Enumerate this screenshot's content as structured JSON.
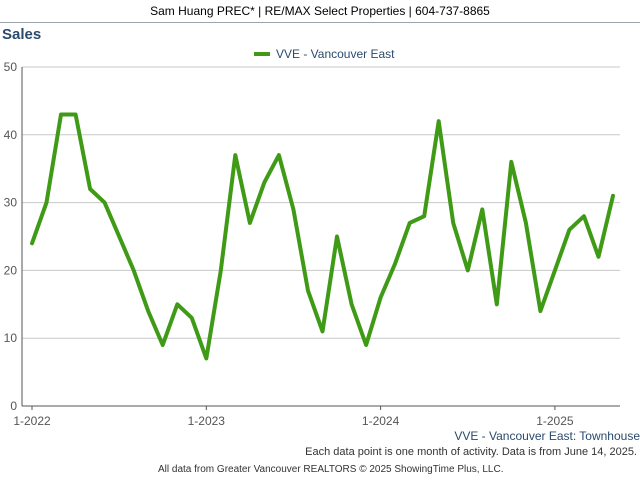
{
  "header": {
    "banner": "Sam Huang PREC* | RE/MAX Select Properties | 604-737-8865"
  },
  "chart_data": {
    "type": "line",
    "title": "Sales",
    "subtitle": "VVE - Vancouver East: Townhouse",
    "note": "Each data point is one month of activity. Data is from June 14, 2025.",
    "source": "All data from Greater Vancouver REALTORS © 2025 ShowingTime Plus, LLC.",
    "legend_position": "top-center",
    "grid": true,
    "ylim": [
      0,
      50
    ],
    "yticks": [
      0,
      10,
      20,
      30,
      40,
      50
    ],
    "x_tick_labels": [
      "1-2022",
      "1-2023",
      "1-2024",
      "1-2025"
    ],
    "x_start": "2022-01",
    "series": [
      {
        "name": "VVE - Vancouver East",
        "color": "#3f9a16",
        "values": [
          24,
          30,
          43,
          43,
          32,
          30,
          25,
          20,
          14,
          9,
          15,
          13,
          7,
          20,
          37,
          27,
          33,
          37,
          29,
          17,
          11,
          25,
          15,
          9,
          16,
          21,
          27,
          28,
          42,
          27,
          20,
          29,
          15,
          36,
          27,
          14,
          20,
          26,
          28,
          22,
          31
        ]
      }
    ]
  }
}
